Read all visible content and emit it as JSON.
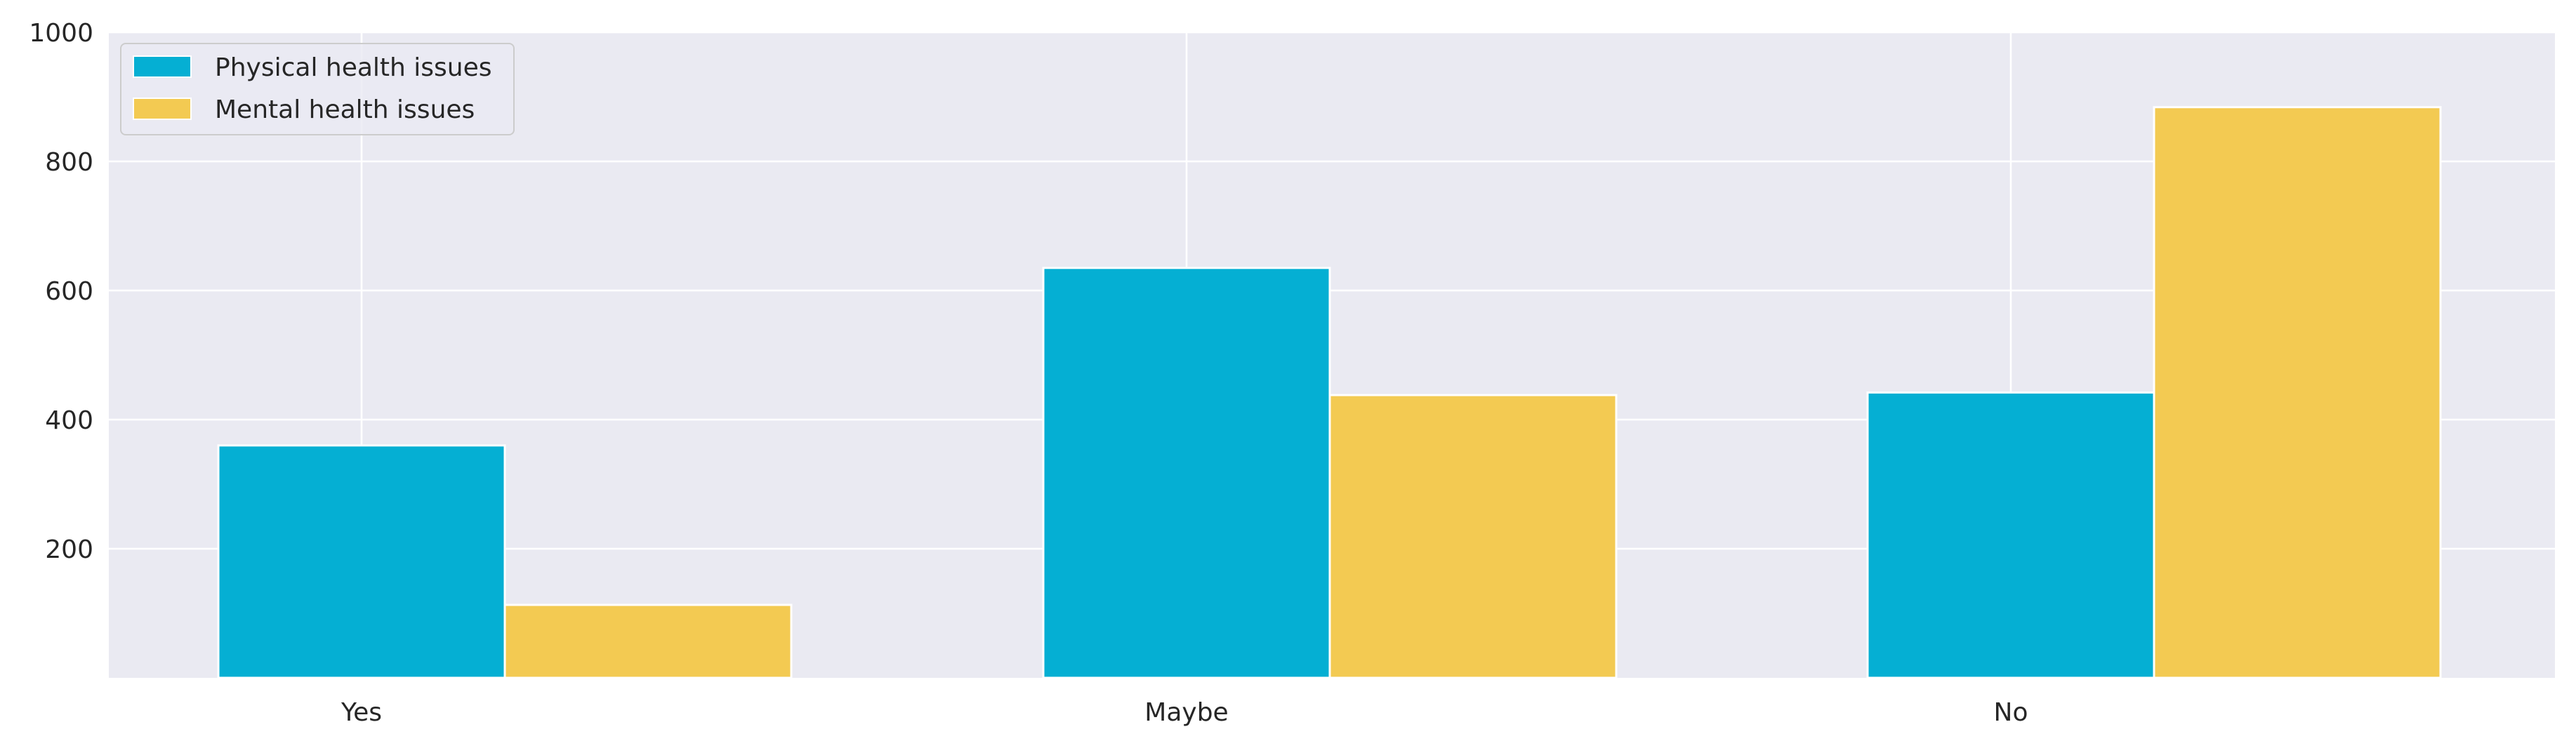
{
  "chart_data": {
    "type": "bar",
    "categories": [
      "Yes",
      "Maybe",
      "No"
    ],
    "series": [
      {
        "name": "Physical health issues",
        "values": [
          360,
          635,
          442
        ],
        "color": "#05AFD3"
      },
      {
        "name": "Mental health issues",
        "values": [
          113,
          438,
          884
        ],
        "color": "#F3CA52"
      }
    ],
    "title": "",
    "xlabel": "",
    "ylabel": "",
    "ylim": [
      0,
      1000
    ],
    "yticks": [
      200,
      400,
      600,
      800,
      1000
    ],
    "grid": true,
    "legend_position": "top-left",
    "background_color": "#EAEAF2",
    "grid_color": "#FFFFFF"
  }
}
